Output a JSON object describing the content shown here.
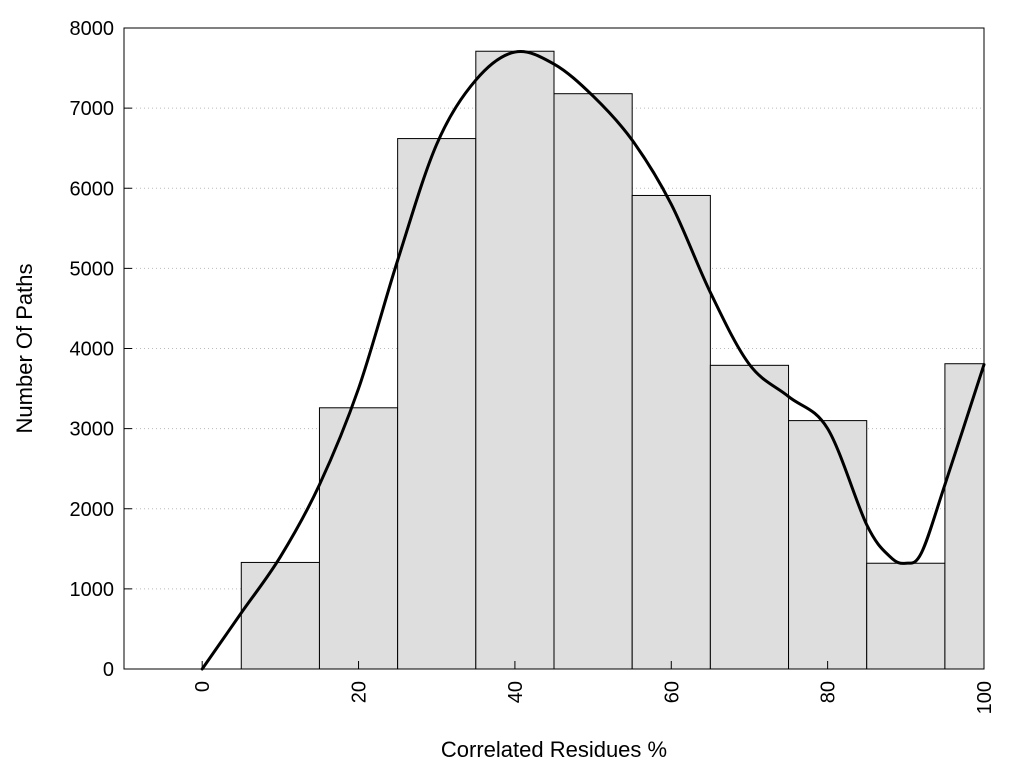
{
  "chart_data": {
    "type": "bar",
    "title": "",
    "xlabel": "Correlated Residues %",
    "ylabel": "Number Of Paths",
    "xlim": [
      -10,
      100
    ],
    "ylim": [
      0,
      8000
    ],
    "x_ticks": [
      0,
      20,
      40,
      60,
      80,
      100
    ],
    "y_ticks": [
      0,
      1000,
      2000,
      3000,
      4000,
      5000,
      6000,
      7000,
      8000
    ],
    "grid": "horizontal dotted",
    "bin_width": 10,
    "bins": [
      {
        "center": 0,
        "value": 0
      },
      {
        "center": 10,
        "value": 1330
      },
      {
        "center": 20,
        "value": 3260
      },
      {
        "center": 30,
        "value": 6620
      },
      {
        "center": 40,
        "value": 7710
      },
      {
        "center": 50,
        "value": 7180
      },
      {
        "center": 60,
        "value": 5910
      },
      {
        "center": 70,
        "value": 3790
      },
      {
        "center": 80,
        "value": 3100
      },
      {
        "center": 90,
        "value": 1320
      },
      {
        "center": 100,
        "value": 3810
      }
    ],
    "smoothed_curve": {
      "x": [
        0,
        5,
        10,
        15,
        20,
        25,
        30,
        35,
        40,
        45,
        50,
        55,
        60,
        65,
        70,
        75,
        80,
        85,
        88,
        90,
        92,
        95,
        100
      ],
      "y": [
        0,
        700,
        1400,
        2300,
        3500,
        5100,
        6550,
        7350,
        7700,
        7550,
        7150,
        6600,
        5800,
        4700,
        3800,
        3400,
        3000,
        1800,
        1400,
        1320,
        1450,
        2300,
        3800
      ]
    },
    "colors": {
      "bar_fill": "#dedede",
      "bar_stroke": "#000000",
      "curve": "#000000",
      "grid": "#bbbbbb"
    }
  }
}
